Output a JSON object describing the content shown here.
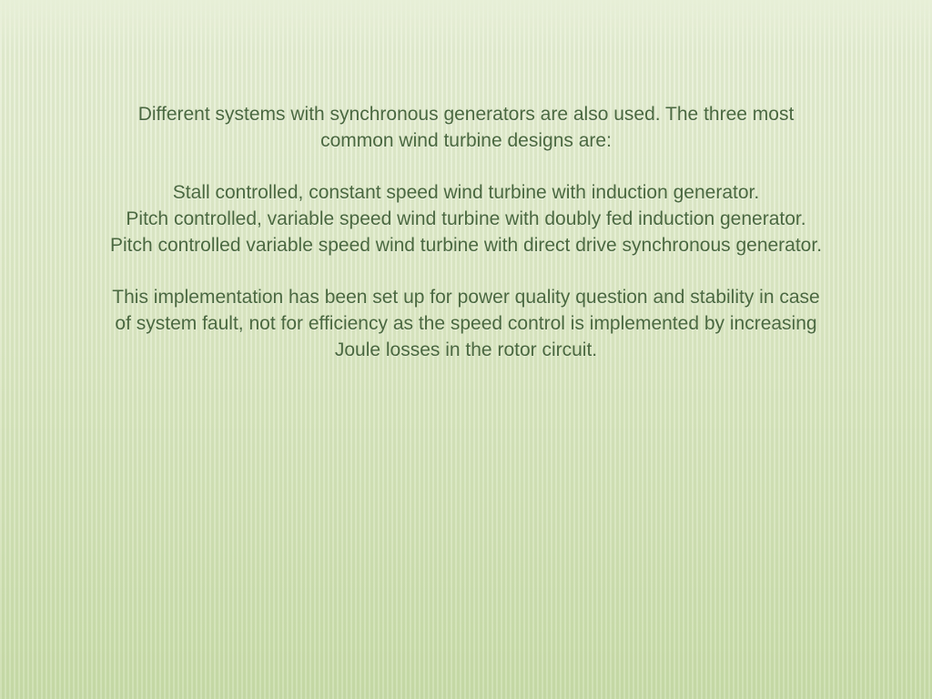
{
  "slide": {
    "background_gradient_top": "#e8f0d8",
    "background_gradient_mid": "#dce8c4",
    "background_gradient_bottom": "#c8dca8",
    "stripe_light": "rgba(255,255,255,0.15)",
    "stripe_dark": "rgba(160,180,130,0.12)",
    "text_color": "#4a6840",
    "font_size_pt": 16,
    "font_family": "Arial",
    "line_height": 1.38,
    "intro_line1": "Different systems with synchronous generators are also used. The three most",
    "intro_line2": "common wind turbine designs are:",
    "design1": "Stall controlled, constant speed wind turbine with induction generator.",
    "design2": "Pitch controlled, variable speed wind turbine with doubly fed induction generator.",
    "design3": "Pitch controlled variable speed wind turbine with direct drive synchronous generator.",
    "conclusion_line1": "This implementation has been set up for power quality question and stability in case",
    "conclusion_line2": "of system fault, not for efficiency as the speed control is implemented by increasing",
    "conclusion_line3": "Joule losses in the rotor circuit."
  }
}
